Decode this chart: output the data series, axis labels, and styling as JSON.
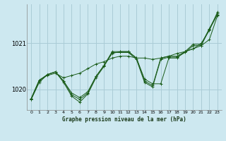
{
  "title": "Graphe pression niveau de la mer (hPa)",
  "background_color": "#cde8f0",
  "grid_color": "#aaccd6",
  "line_color": "#1a5c1a",
  "xlim": [
    -0.5,
    23.5
  ],
  "ylim": [
    1019.55,
    1021.85
  ],
  "yticks": [
    1020,
    1021
  ],
  "xticks": [
    0,
    1,
    2,
    3,
    4,
    5,
    6,
    7,
    8,
    9,
    10,
    11,
    12,
    13,
    14,
    15,
    16,
    17,
    18,
    19,
    20,
    21,
    22,
    23
  ],
  "series": [
    [
      1019.8,
      1020.2,
      1020.3,
      1020.35,
      1020.25,
      1020.3,
      1020.35,
      1020.45,
      1020.55,
      1020.6,
      1020.68,
      1020.72,
      1020.72,
      1020.68,
      1020.68,
      1020.65,
      1020.68,
      1020.72,
      1020.78,
      1020.82,
      1020.88,
      1020.95,
      1021.08,
      1021.6
    ],
    [
      1019.8,
      1020.2,
      1020.32,
      1020.38,
      1020.18,
      1019.92,
      1019.82,
      1019.95,
      1020.28,
      1020.52,
      1020.78,
      1020.82,
      1020.82,
      1020.68,
      1020.22,
      1020.12,
      1020.12,
      1020.68,
      1020.68,
      1020.82,
      1020.88,
      1021.0,
      1021.28,
      1021.68
    ],
    [
      1019.78,
      1020.18,
      1020.32,
      1020.38,
      1020.18,
      1019.88,
      1019.78,
      1019.92,
      1020.28,
      1020.52,
      1020.82,
      1020.82,
      1020.82,
      1020.68,
      1020.18,
      1020.08,
      1020.68,
      1020.72,
      1020.72,
      1020.82,
      1020.98,
      1020.98,
      1021.32,
      1021.65
    ],
    [
      1019.78,
      1020.15,
      1020.32,
      1020.38,
      1020.15,
      1019.85,
      1019.72,
      1019.9,
      1020.25,
      1020.5,
      1020.8,
      1020.8,
      1020.8,
      1020.65,
      1020.15,
      1020.05,
      1020.65,
      1020.7,
      1020.7,
      1020.8,
      1020.95,
      1020.95,
      1021.3,
      1021.62
    ]
  ]
}
